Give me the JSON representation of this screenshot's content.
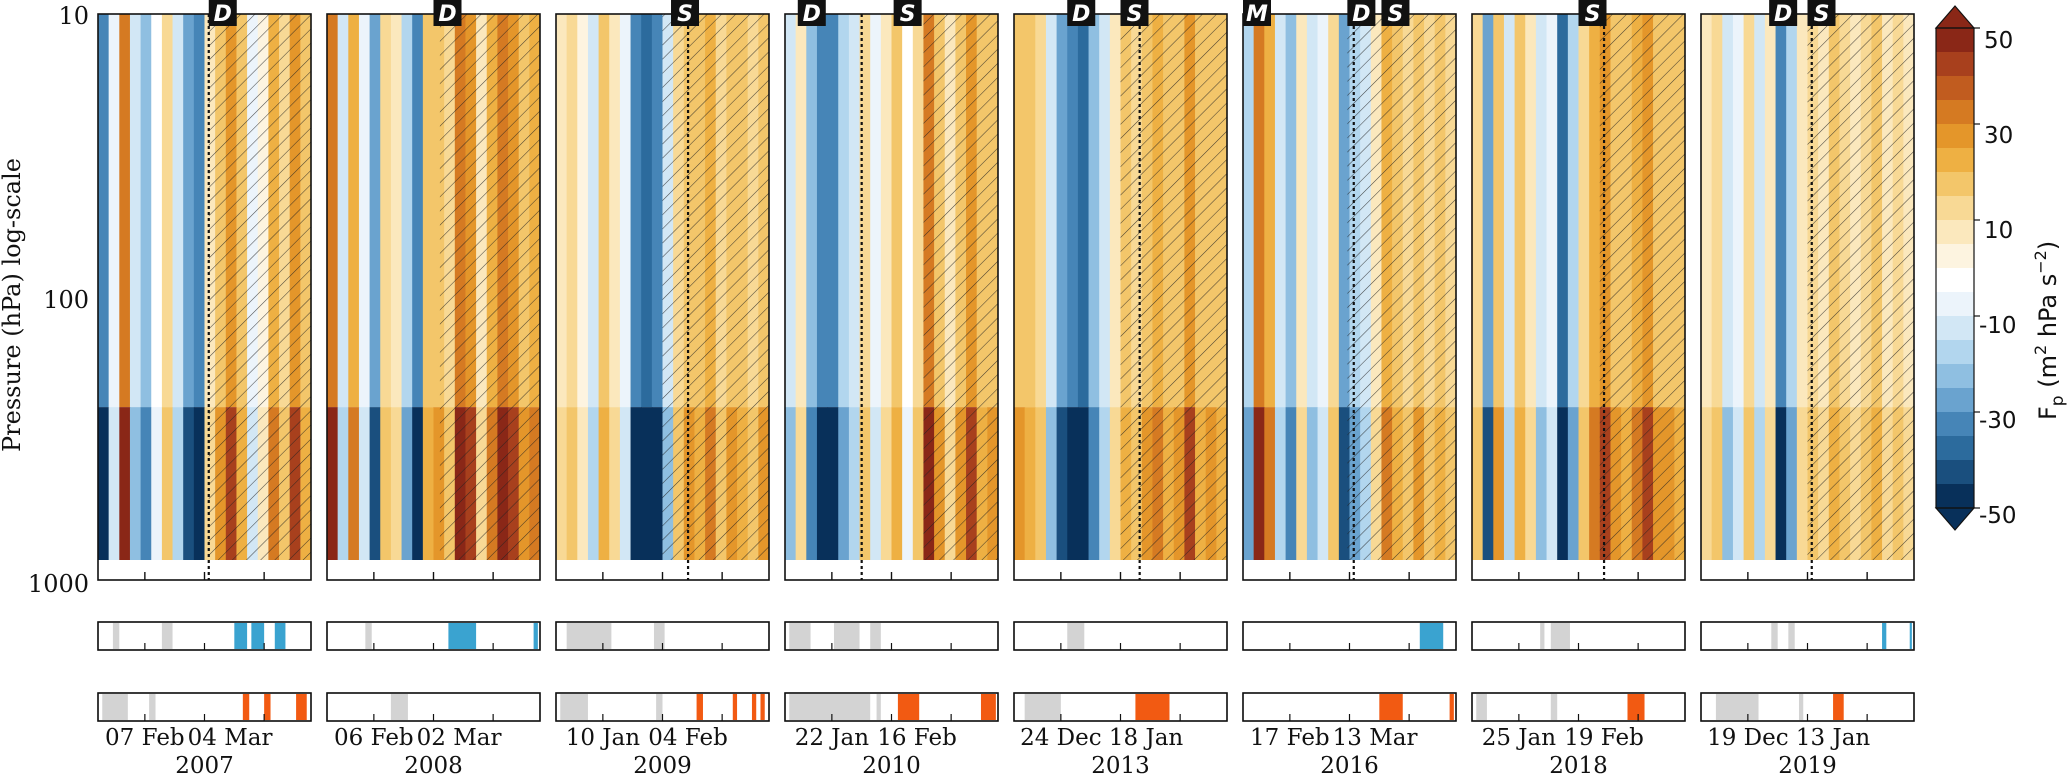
{
  "chart_data": {
    "type": "heatmap",
    "ylabel": "Pressure (hPa) log-scale",
    "yscale": "log",
    "ylim": [
      1000,
      10
    ],
    "yticks": [
      "10",
      "100",
      "1000"
    ],
    "colorbar": {
      "label_main": "F",
      "label_sub": "p",
      "label_units": "(m",
      "label_sup1": "2",
      "label_mid": "hPa s",
      "label_sup2": "−2",
      "label_end": ")",
      "range": [
        -50,
        50
      ],
      "ticks": [
        "50",
        "30",
        "10",
        "-10",
        "-30",
        "-50"
      ],
      "colors": [
        "#08305a",
        "#1a4f7e",
        "#2c6b9d",
        "#4685b7",
        "#6aa3cf",
        "#8fbfe1",
        "#b2d6ee",
        "#d2e7f5",
        "#ecf4fb",
        "#ffffff",
        "#fdf4e0",
        "#fbe8bd",
        "#f8d995",
        "#f3c66a",
        "#eeb043",
        "#e4962a",
        "#d57a22",
        "#c15c1f",
        "#a8401d",
        "#8a2717"
      ]
    },
    "panels": [
      {
        "year": "2007",
        "date1": "07 Feb",
        "date2": "04 Mar",
        "events": [
          {
            "label": "D",
            "pos": 0.52
          }
        ],
        "hatch_start": 0.52,
        "dotted": [
          0.52
        ],
        "profile": [
          -0.8,
          -0.2,
          0.9,
          -0.4,
          -0.6,
          -0.1,
          0.3,
          -0.3,
          -0.7,
          -0.9,
          0.2,
          0.5,
          0.7,
          0.4,
          -0.2,
          0.1,
          0.6,
          0.3,
          0.7,
          0.4
        ],
        "blue_bars": [
          [
            0.64,
            0.7
          ],
          [
            0.72,
            0.78
          ],
          [
            0.83,
            0.88
          ]
        ],
        "gray_top": [
          [
            0.07,
            0.1
          ],
          [
            0.3,
            0.35
          ]
        ],
        "orange_bars": [
          [
            0.68,
            0.71
          ],
          [
            0.78,
            0.81
          ],
          [
            0.93,
            0.98
          ]
        ],
        "gray_bottom": [
          [
            0.02,
            0.14
          ],
          [
            0.24,
            0.27
          ]
        ]
      },
      {
        "year": "2008",
        "date1": "06 Feb",
        "date2": "02 Mar",
        "events": [
          {
            "label": "D",
            "pos": 0.5
          }
        ],
        "hatch_start": 0.53,
        "dotted": [],
        "profile": [
          0.9,
          -0.3,
          0.6,
          -0.2,
          -0.7,
          0.3,
          0.2,
          -0.5,
          -0.8,
          0.4,
          0.5,
          0.3,
          0.9,
          0.7,
          0.2,
          0.6,
          0.8,
          0.7,
          0.5,
          0.6
        ],
        "blue_bars": [
          [
            0.57,
            0.7
          ],
          [
            0.97,
            0.99
          ]
        ],
        "gray_top": [
          [
            0.18,
            0.21
          ]
        ],
        "orange_bars": [],
        "gray_bottom": [
          [
            0.3,
            0.38
          ]
        ]
      },
      {
        "year": "2009",
        "date1": "10 Jan",
        "date2": "04 Feb",
        "events": [
          {
            "label": "S",
            "pos": 0.54
          }
        ],
        "hatch_start": 0.5,
        "dotted": [
          0.62
        ],
        "profile": [
          0.2,
          0.3,
          0.1,
          -0.3,
          0.4,
          0.2,
          -0.2,
          -0.9,
          -1.0,
          -0.8,
          -0.4,
          0.3,
          0.5,
          0.4,
          0.6,
          0.3,
          0.5,
          0.4,
          0.3,
          0.5
        ],
        "blue_bars": [],
        "gray_top": [
          [
            0.05,
            0.26
          ],
          [
            0.46,
            0.51
          ]
        ],
        "orange_bars": [
          [
            0.66,
            0.69
          ],
          [
            0.83,
            0.85
          ],
          [
            0.92,
            0.94
          ],
          [
            0.96,
            0.98
          ]
        ],
        "gray_bottom": [
          [
            0.02,
            0.15
          ],
          [
            0.47,
            0.5
          ]
        ]
      },
      {
        "year": "2010",
        "date1": "22 Jan",
        "date2": "16 Feb",
        "events": [
          {
            "label": "D",
            "pos": 0.06
          },
          {
            "label": "S",
            "pos": 0.51
          }
        ],
        "hatch_start": 0.65,
        "dotted": [
          0.36
        ],
        "profile": [
          -0.4,
          0.2,
          -0.6,
          -0.8,
          -0.9,
          -0.5,
          -0.3,
          0.3,
          -0.2,
          0.2,
          0.4,
          -0.1,
          0.3,
          0.8,
          0.5,
          0.2,
          0.5,
          0.7,
          0.4,
          0.5
        ],
        "blue_bars": [],
        "gray_top": [
          [
            0.02,
            0.12
          ],
          [
            0.23,
            0.35
          ],
          [
            0.4,
            0.45
          ]
        ],
        "orange_bars": [
          [
            0.53,
            0.63
          ],
          [
            0.92,
            0.99
          ]
        ],
        "gray_bottom": [
          [
            0.02,
            0.4
          ],
          [
            0.43,
            0.45
          ]
        ]
      },
      {
        "year": "2013",
        "date1": "24 Dec",
        "date2": "18 Jan",
        "events": [
          {
            "label": "D",
            "pos": 0.25
          },
          {
            "label": "S",
            "pos": 0.5
          }
        ],
        "hatch_start": 0.5,
        "dotted": [
          0.59
        ],
        "profile": [
          0.5,
          0.4,
          0.3,
          -0.4,
          -0.7,
          -0.9,
          -1.0,
          -0.6,
          -0.3,
          0.2,
          0.4,
          0.3,
          0.5,
          0.6,
          0.4,
          0.5,
          0.7,
          0.4,
          0.5,
          0.4
        ],
        "blue_bars": [],
        "gray_top": [
          [
            0.25,
            0.33
          ]
        ],
        "orange_bars": [
          [
            0.57,
            0.73
          ]
        ],
        "gray_bottom": [
          [
            0.05,
            0.22
          ]
        ]
      },
      {
        "year": "2016",
        "date1": "17 Feb",
        "date2": "13 Mar",
        "events": [
          {
            "label": "M",
            "pos": 0.0
          },
          {
            "label": "D",
            "pos": 0.49
          },
          {
            "label": "S",
            "pos": 0.65
          }
        ],
        "hatch_start": 0.49,
        "dotted": [
          0.52
        ],
        "profile": [
          -0.5,
          0.9,
          0.6,
          -0.3,
          -0.6,
          0.2,
          -0.4,
          -0.2,
          0.3,
          -0.7,
          -0.5,
          -0.3,
          0.2,
          0.6,
          0.4,
          0.3,
          0.5,
          0.3,
          0.4,
          0.3
        ],
        "blue_bars": [
          [
            0.83,
            0.94
          ]
        ],
        "gray_top": [],
        "orange_bars": [
          [
            0.64,
            0.75
          ],
          [
            0.97,
            0.99
          ]
        ],
        "gray_bottom": []
      },
      {
        "year": "2018",
        "date1": "25 Jan",
        "date2": "19 Feb",
        "events": [
          {
            "label": "S",
            "pos": 0.5
          }
        ],
        "hatch_start": 0.6,
        "dotted": [
          0.62
        ],
        "profile": [
          0.3,
          -0.7,
          0.5,
          -0.3,
          0.4,
          0.2,
          -0.4,
          -0.2,
          -1.0,
          -0.5,
          0.3,
          0.6,
          0.7,
          0.5,
          0.4,
          0.6,
          0.7,
          0.5,
          0.5,
          0.4
        ],
        "blue_bars": [],
        "gray_top": [
          [
            0.32,
            0.34
          ],
          [
            0.37,
            0.46
          ]
        ],
        "orange_bars": [
          [
            0.73,
            0.81
          ]
        ],
        "gray_bottom": [
          [
            0.02,
            0.07
          ],
          [
            0.37,
            0.4
          ]
        ]
      },
      {
        "year": "2019",
        "date1": "19 Dec",
        "date2": "13 Jan",
        "events": [
          {
            "label": "D",
            "pos": 0.32
          },
          {
            "label": "S",
            "pos": 0.5
          }
        ],
        "hatch_start": 0.5,
        "dotted": [
          0.52
        ],
        "profile": [
          0.2,
          0.3,
          -0.4,
          -0.2,
          0.3,
          -0.3,
          0.2,
          -0.9,
          -0.5,
          0.2,
          0.3,
          0.2,
          0.4,
          0.3,
          0.2,
          0.3,
          0.4,
          0.2,
          0.3,
          0.2
        ],
        "blue_bars": [
          [
            0.85,
            0.87
          ],
          [
            0.98,
            0.99
          ]
        ],
        "gray_top": [
          [
            0.33,
            0.36
          ],
          [
            0.41,
            0.44
          ]
        ],
        "orange_bars": [
          [
            0.62,
            0.67
          ]
        ],
        "gray_bottom": [
          [
            0.07,
            0.27
          ],
          [
            0.46,
            0.48
          ]
        ]
      }
    ]
  }
}
